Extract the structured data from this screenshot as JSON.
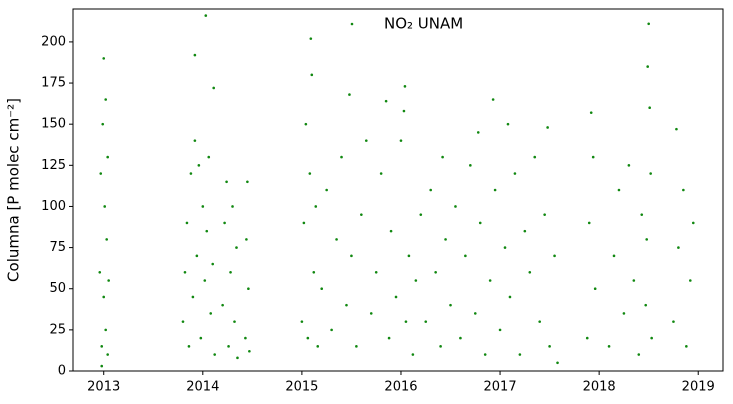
{
  "chart_data": {
    "type": "scatter",
    "ylabel": "Columna [P molec cm⁻²]",
    "xlim": [
      2012.69,
      2019.25
    ],
    "ylim": [
      0,
      220
    ],
    "xticks": [
      2013,
      2014,
      2015,
      2016,
      2017,
      2018,
      2019
    ],
    "yticks": [
      0,
      25,
      50,
      75,
      100,
      125,
      150,
      175,
      200
    ],
    "legend": "top",
    "x": [
      2012.96,
      2012.97,
      2012.98,
      2012.99,
      2013.0,
      2013.0,
      2013.01,
      2013.02,
      2013.02,
      2013.03,
      2013.04,
      2013.04,
      2013.05,
      2012.98,
      2013.8,
      2013.82,
      2013.84,
      2013.86,
      2013.88,
      2013.9,
      2013.92,
      2013.92,
      2013.94,
      2013.96,
      2013.98,
      2014.0,
      2014.02,
      2014.03,
      2014.04,
      2014.06,
      2014.08,
      2014.1,
      2014.11,
      2014.12,
      2014.2,
      2014.22,
      2014.24,
      2014.26,
      2014.28,
      2014.3,
      2014.32,
      2014.34,
      2014.35,
      2014.43,
      2014.44,
      2014.45,
      2014.46,
      2014.47,
      2015.0,
      2015.02,
      2015.04,
      2015.06,
      2015.08,
      2015.09,
      2015.1,
      2015.12,
      2015.14,
      2015.16,
      2015.2,
      2015.25,
      2015.3,
      2015.35,
      2015.4,
      2015.45,
      2015.48,
      2015.5,
      2015.55,
      2015.6,
      2015.65,
      2015.7,
      2015.75,
      2015.8,
      2015.85,
      2015.88,
      2015.9,
      2015.95,
      2016.0,
      2016.03,
      2016.05,
      2016.08,
      2016.04,
      2016.12,
      2016.15,
      2016.2,
      2016.25,
      2016.3,
      2016.35,
      2016.4,
      2016.42,
      2016.45,
      2016.5,
      2016.55,
      2016.6,
      2016.65,
      2016.7,
      2016.75,
      2016.78,
      2016.8,
      2016.85,
      2016.9,
      2016.93,
      2016.95,
      2017.0,
      2017.05,
      2017.08,
      2017.1,
      2017.15,
      2017.2,
      2017.25,
      2017.3,
      2017.35,
      2017.4,
      2017.45,
      2017.48,
      2017.5,
      2017.55,
      2017.58,
      2017.88,
      2017.9,
      2017.92,
      2017.94,
      2017.96,
      2018.1,
      2018.15,
      2018.2,
      2018.25,
      2018.3,
      2018.35,
      2018.4,
      2018.43,
      2018.47,
      2018.48,
      2018.5,
      2018.51,
      2018.52,
      2018.53,
      2018.49,
      2018.75,
      2018.78,
      2018.8,
      2018.85,
      2018.88,
      2018.92,
      2018.95
    ],
    "series": [
      {
        "name": "NO₂ UNAM",
        "color": "#118811",
        "values": [
          60,
          120,
          15,
          150,
          190,
          45,
          100,
          165,
          25,
          80,
          130,
          10,
          55,
          3,
          30,
          60,
          90,
          15,
          120,
          45,
          140,
          192,
          70,
          125,
          20,
          100,
          55,
          216,
          85,
          130,
          35,
          65,
          172,
          10,
          40,
          90,
          115,
          15,
          60,
          100,
          30,
          75,
          8,
          20,
          80,
          115,
          50,
          12,
          30,
          90,
          150,
          20,
          120,
          202,
          180,
          60,
          100,
          15,
          50,
          110,
          25,
          80,
          130,
          40,
          168,
          70,
          15,
          95,
          140,
          35,
          60,
          120,
          164,
          20,
          85,
          45,
          140,
          158,
          30,
          70,
          173,
          10,
          55,
          95,
          30,
          110,
          60,
          15,
          130,
          80,
          40,
          100,
          20,
          70,
          125,
          35,
          145,
          90,
          10,
          55,
          165,
          110,
          25,
          75,
          150,
          45,
          120,
          10,
          85,
          60,
          130,
          30,
          95,
          148,
          15,
          70,
          5,
          20,
          90,
          157,
          130,
          50,
          15,
          70,
          110,
          35,
          125,
          55,
          10,
          95,
          40,
          80,
          211,
          160,
          120,
          20,
          185,
          30,
          147,
          75,
          110,
          15,
          55,
          90
        ]
      }
    ]
  }
}
